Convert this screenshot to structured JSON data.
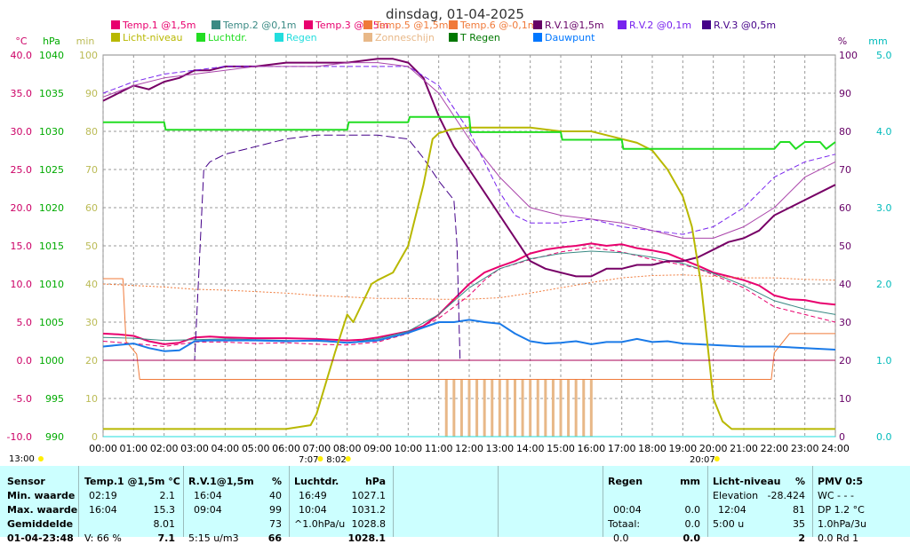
{
  "chart_data": {
    "type": "line",
    "title": "dinsdag, 01-04-2025",
    "x_ticks": [
      "00:00",
      "01:00",
      "02:00",
      "03:00",
      "04:00",
      "05:00",
      "06:00",
      "07:00",
      "08:00",
      "09:00",
      "10:00",
      "11:00",
      "12:00",
      "13:00",
      "14:00",
      "15:00",
      "16:00",
      "17:00",
      "18:00",
      "19:00",
      "20:00",
      "21:00",
      "22:00",
      "23:00",
      "24:00"
    ],
    "xlim": [
      0,
      24
    ],
    "axes": {
      "temp": {
        "label": "°C",
        "range": [
          -10,
          40
        ],
        "ticks": [
          "40.0",
          "35.0",
          "30.0",
          "25.0",
          "20.0",
          "15.0",
          "10.0",
          "5.0",
          "0.0",
          "-5.0",
          "-10.0"
        ],
        "color": "#cc0066"
      },
      "pressure": {
        "label": "hPa",
        "range": [
          990,
          1040
        ],
        "ticks": [
          "1040",
          "1035",
          "1030",
          "1025",
          "1020",
          "1015",
          "1010",
          "1005",
          "1000",
          "995",
          "990"
        ],
        "color": "#00aa00"
      },
      "minutes": {
        "label": "min",
        "range": [
          0,
          100
        ],
        "ticks": [
          "100",
          "90",
          "80",
          "70",
          "60",
          "50",
          "40",
          "30",
          "20",
          "10",
          "0"
        ],
        "color": "#bbbb55"
      },
      "humidity": {
        "label": "%",
        "range": [
          0,
          100
        ],
        "ticks": [
          "100",
          "90",
          "80",
          "70",
          "60",
          "50",
          "40",
          "30",
          "20",
          "10",
          "0"
        ],
        "color": "#660066"
      },
      "rain": {
        "label": "mm",
        "range": [
          0,
          5
        ],
        "ticks": [
          "5.0",
          "4.0",
          "3.0",
          "2.0",
          "1.0",
          "0.0"
        ],
        "color": "#00bbbb"
      }
    },
    "legend": [
      {
        "name": "Temp.1 @1,5m",
        "color": "#e8006e"
      },
      {
        "name": "Temp.2 @0,1m",
        "color": "#3a8a84"
      },
      {
        "name": "Temp.3 @0,5m",
        "color": "#e8006e"
      },
      {
        "name": "Temp.5 @1,5m",
        "color": "#f07a3a"
      },
      {
        "name": "Temp.6 @-0,1m",
        "color": "#f07a3a"
      },
      {
        "name": "R.V.1@1,5m",
        "color": "#660066"
      },
      {
        "name": "R.V.2 @0,1m",
        "color": "#7722ee"
      },
      {
        "name": "R.V.3 @0,5m",
        "color": "#440088"
      },
      {
        "name": "Licht-niveau",
        "color": "#b8b800"
      },
      {
        "name": "Luchtdr.",
        "color": "#22dd22"
      },
      {
        "name": "Regen",
        "color": "#22dddd"
      },
      {
        "name": "Zonneschijn",
        "color": "#e8b888"
      },
      {
        "name": "T Regen",
        "color": "#007700"
      },
      {
        "name": "Dauwpunt",
        "color": "#0077ff"
      }
    ],
    "legend_placement": "top",
    "grid": true,
    "series": [
      {
        "name": "Temp.1 @1,5m",
        "axis": "temp",
        "color": "#e8006e",
        "width": 2,
        "dash": "",
        "x": [
          0,
          0.5,
          1,
          1.5,
          2,
          2.5,
          3,
          3.5,
          4,
          5,
          6,
          7,
          8,
          8.5,
          9,
          10,
          10.5,
          11,
          11.5,
          12,
          12.5,
          13,
          13.5,
          14,
          14.5,
          15,
          15.5,
          16,
          16.5,
          17,
          17.5,
          18,
          18.5,
          19,
          19.5,
          20,
          20.5,
          21,
          21.5,
          22,
          22.5,
          23,
          23.5,
          24
        ],
        "y": [
          3.5,
          3.4,
          3.2,
          2.5,
          2.1,
          2.3,
          3.0,
          3.1,
          3.0,
          2.9,
          2.9,
          2.8,
          2.6,
          2.7,
          3.0,
          3.8,
          4.5,
          6.0,
          8.0,
          10.0,
          11.5,
          12.3,
          13.0,
          14.0,
          14.5,
          14.8,
          15.0,
          15.3,
          15.0,
          15.2,
          14.7,
          14.4,
          14.0,
          13.2,
          12.4,
          11.5,
          11.0,
          10.5,
          9.8,
          8.5,
          8.0,
          7.9,
          7.5,
          7.3
        ]
      },
      {
        "name": "Temp.3 @0,5m",
        "axis": "temp",
        "color": "#e8006e",
        "width": 1,
        "dash": "5,3",
        "x": [
          0,
          1,
          2,
          3,
          4,
          5,
          6,
          7,
          8,
          9,
          10,
          11,
          12,
          12.5,
          13,
          14,
          15,
          16,
          17,
          18,
          19,
          19.5,
          20,
          21,
          22,
          23,
          24
        ],
        "y": [
          2.5,
          2.2,
          1.8,
          2.4,
          2.4,
          2.2,
          2.3,
          2.1,
          2.0,
          2.4,
          3.5,
          5.5,
          8.5,
          10.5,
          12.0,
          13.2,
          14.2,
          14.8,
          14.2,
          13.2,
          12.5,
          12.0,
          11.2,
          9.5,
          7.0,
          6.0,
          5.0
        ]
      },
      {
        "name": "Temp.2 @0,1m",
        "axis": "temp",
        "color": "#3a8a84",
        "width": 1,
        "dash": "",
        "x": [
          0,
          1,
          2,
          3,
          4,
          5,
          6,
          7,
          8,
          9,
          10,
          11,
          12,
          13,
          14,
          15,
          16,
          17,
          18,
          19,
          20,
          21,
          22,
          23,
          24
        ],
        "y": [
          3.0,
          2.9,
          2.6,
          2.7,
          2.8,
          2.7,
          2.6,
          2.5,
          2.3,
          2.8,
          3.8,
          6.0,
          9.5,
          12.0,
          13.3,
          14.0,
          14.3,
          14.1,
          13.5,
          12.7,
          11.4,
          9.8,
          7.8,
          6.7,
          6.0
        ]
      },
      {
        "name": "Temp.6 @-0,1m",
        "axis": "temp",
        "color": "#f07a3a",
        "width": 1,
        "dash": "",
        "x": [
          0,
          0.65,
          0.75,
          1.1,
          1.2,
          4,
          8,
          12,
          16,
          19,
          21.9,
          22,
          22.5,
          24
        ],
        "y": [
          10.7,
          10.7,
          2.5,
          0.8,
          -2.5,
          -2.5,
          -2.5,
          -2.5,
          -2.5,
          -2.5,
          -2.5,
          1.0,
          3.5,
          3.5
        ]
      },
      {
        "name": "Temp.5 @1,5m",
        "axis": "temp",
        "color": "#f07a3a",
        "width": 1,
        "dash": "2,2",
        "x": [
          0,
          1,
          2,
          3,
          4,
          5,
          6,
          7,
          8,
          9,
          10,
          11,
          12,
          13,
          14,
          15,
          16,
          17,
          18,
          19,
          20,
          21,
          22,
          23,
          24
        ],
        "y": [
          10.0,
          9.8,
          9.6,
          9.3,
          9.2,
          9.0,
          8.8,
          8.5,
          8.3,
          8.1,
          8.1,
          8.0,
          8.0,
          8.2,
          8.8,
          9.5,
          10.2,
          10.8,
          11.1,
          11.2,
          11.0,
          10.8,
          10.8,
          10.6,
          10.5
        ]
      },
      {
        "name": "Dauwpunt",
        "axis": "temp",
        "color": "#1a7ae8",
        "width": 2,
        "dash": "",
        "x": [
          0,
          0.5,
          1,
          1.5,
          2,
          2.5,
          3,
          3.5,
          4,
          5,
          6,
          7,
          8,
          9,
          10,
          11,
          11.5,
          12,
          12.5,
          13,
          13.5,
          14,
          14.5,
          15,
          15.5,
          16,
          16.5,
          17,
          17.5,
          18,
          18.5,
          19,
          19.5,
          20,
          21,
          22,
          23,
          24
        ],
        "y": [
          1.8,
          2.0,
          2.2,
          1.6,
          1.2,
          1.3,
          2.5,
          2.6,
          2.6,
          2.6,
          2.5,
          2.6,
          2.3,
          2.6,
          3.6,
          5.0,
          5.0,
          5.3,
          5.0,
          4.8,
          3.5,
          2.5,
          2.2,
          2.3,
          2.5,
          2.1,
          2.4,
          2.4,
          2.8,
          2.4,
          2.5,
          2.2,
          2.1,
          2.0,
          1.8,
          1.8,
          1.6,
          1.4
        ]
      },
      {
        "name": "R.V.1@1,5m",
        "axis": "humidity",
        "color": "#770066",
        "width": 2,
        "dash": "",
        "x": [
          0,
          0.5,
          1,
          1.5,
          2,
          2.5,
          3,
          3.5,
          4,
          5,
          6,
          7,
          8,
          9,
          9.5,
          10,
          10.5,
          11,
          11.5,
          12,
          12.5,
          13,
          13.5,
          14,
          14.5,
          15,
          15.5,
          16,
          16.5,
          17,
          17.5,
          18,
          18.5,
          19,
          19.5,
          20,
          20.5,
          21,
          21.5,
          22,
          22.5,
          23,
          23.5,
          24
        ],
        "y": [
          88,
          90,
          92,
          91,
          93,
          94,
          96,
          96,
          97,
          97,
          98,
          98,
          98,
          99,
          99,
          98,
          94,
          84,
          76,
          70,
          64,
          58,
          52,
          46,
          44,
          43,
          42,
          42,
          44,
          44,
          45,
          45,
          46,
          46,
          47,
          49,
          51,
          52,
          54,
          58,
          60,
          62,
          64,
          66
        ]
      },
      {
        "name": "R.V.2 @0,1m",
        "axis": "humidity",
        "color": "#7722ee",
        "width": 1,
        "dash": "6,3",
        "x": [
          0,
          1,
          2,
          3,
          4,
          5,
          6,
          7,
          8,
          9,
          10,
          11,
          12,
          12.5,
          13,
          13.5,
          14,
          15,
          16,
          17,
          18,
          19,
          20,
          21,
          22,
          23,
          24
        ],
        "y": [
          90,
          93,
          95,
          96,
          97,
          97,
          97,
          97,
          97,
          97,
          97,
          92,
          80,
          72,
          64,
          58,
          56,
          56,
          57,
          55,
          54,
          53,
          55,
          60,
          68,
          72,
          74
        ]
      },
      {
        "name": "R.V.3 @0,5m",
        "axis": "humidity",
        "color": "#440088",
        "width": 1,
        "dash": "10,4",
        "x": [
          0,
          2.95,
          3.0,
          3.15,
          3.3,
          3.5,
          4,
          5,
          6,
          7,
          8,
          9,
          10,
          10.5,
          11,
          11.5,
          11.6,
          11.7,
          12,
          15,
          18,
          20,
          24
        ],
        "y": [
          20,
          20,
          20,
          45,
          70,
          72,
          74,
          76,
          78,
          79,
          79,
          79,
          78,
          73,
          67,
          62,
          50,
          20,
          20,
          20,
          20,
          20,
          20
        ]
      },
      {
        "name": "R.V. thin",
        "axis": "humidity",
        "color": "#aa44aa",
        "width": 1,
        "dash": "",
        "x": [
          0,
          1,
          2,
          3,
          4,
          5,
          6,
          7,
          8,
          9,
          10,
          11,
          12,
          13,
          14,
          15,
          16,
          17,
          18,
          19,
          20,
          21,
          22,
          23,
          24
        ],
        "y": [
          89,
          92,
          94,
          95,
          96,
          97,
          97,
          97,
          98,
          98,
          97,
          90,
          78,
          68,
          60,
          58,
          57,
          56,
          54,
          52,
          52,
          55,
          60,
          68,
          72
        ]
      },
      {
        "name": "Licht-niveau",
        "axis": "minutes",
        "color": "#b8b800",
        "width": 2,
        "dash": "",
        "x": [
          0,
          1,
          2,
          3,
          4,
          5,
          6,
          6.8,
          7,
          7.3,
          7.6,
          8,
          8.2,
          8.5,
          8.8,
          9.0,
          9.5,
          10,
          10.5,
          10.8,
          11,
          11.2,
          11.4,
          12,
          13,
          14,
          15,
          16,
          16.5,
          17,
          17.5,
          18,
          18.5,
          19,
          19.3,
          19.6,
          19.8,
          20,
          20.3,
          20.6,
          21,
          22,
          23,
          24
        ],
        "y": [
          2,
          2,
          2,
          2,
          2,
          2,
          2,
          3,
          6,
          14,
          22,
          32,
          30,
          35,
          40,
          41,
          43,
          50,
          66,
          78,
          79.5,
          80,
          80.5,
          81,
          81,
          81,
          80,
          80,
          79,
          78,
          77,
          75,
          70,
          63,
          55,
          40,
          25,
          10,
          4,
          2,
          2,
          2,
          2,
          2
        ]
      },
      {
        "name": "Luchtdr.",
        "axis": "pressure",
        "color": "#22dd22",
        "width": 2,
        "dash": "",
        "x": [
          0,
          2,
          2.05,
          3,
          8,
          8.05,
          10,
          10.05,
          12,
          12.05,
          13,
          14,
          15,
          15.05,
          16,
          16.5,
          17,
          17.05,
          18,
          19,
          19.5,
          20,
          20.5,
          21,
          22,
          22.2,
          22.5,
          22.7,
          23,
          23.5,
          23.7,
          24
        ],
        "y": [
          1031.2,
          1031.2,
          1030.2,
          1030.2,
          1030.2,
          1031.2,
          1031.2,
          1031.9,
          1031.9,
          1029.9,
          1029.9,
          1029.9,
          1029.9,
          1028.9,
          1028.9,
          1028.9,
          1028.9,
          1027.7,
          1027.7,
          1027.7,
          1027.7,
          1027.7,
          1027.7,
          1027.7,
          1027.7,
          1028.6,
          1028.6,
          1027.7,
          1028.6,
          1028.6,
          1027.7,
          1028.6
        ]
      },
      {
        "name": "Regen",
        "axis": "rain",
        "color": "#22dddd",
        "width": 1,
        "dash": "",
        "x": [
          0,
          24
        ],
        "y": [
          0.0,
          0.0
        ]
      },
      {
        "name": "Dewpoint zero line",
        "axis": "temp",
        "color": "#aa0055",
        "width": 1,
        "dash": "",
        "x": [
          0,
          24
        ],
        "y": [
          0,
          0
        ]
      }
    ],
    "sunshine_bars": {
      "axis": "minutes",
      "color": "#e8b888",
      "x": [
        11.25,
        11.5,
        11.75,
        12.0,
        12.25,
        12.5,
        12.75,
        13.0,
        13.25,
        13.5,
        13.75,
        14.0,
        14.25,
        14.5,
        14.75,
        15.0,
        15.25,
        15.5,
        15.75,
        16.0
      ],
      "y": [
        15,
        15,
        15,
        15,
        15,
        15,
        15,
        15,
        15,
        15,
        15,
        15,
        15,
        15,
        15,
        15,
        15,
        15,
        15,
        15
      ]
    },
    "sun_markers": [
      {
        "label": "13:00",
        "time": -0.2
      },
      {
        "label": "7:07",
        "time": 7.12
      },
      {
        "label": "8:02",
        "time": 8.03
      },
      {
        "label": "20:07",
        "time": 20.12
      }
    ]
  },
  "table": {
    "color": "#ccffff",
    "sensor": {
      "header": "Sensor",
      "rows": [
        "Min. waarde",
        "Max. waarde",
        "Gemiddelde",
        "01-04-23:48"
      ]
    },
    "temp1": {
      "header": "Temp.1 @1,5m  °C",
      "min_time": "02:19",
      "min_val": "2.1",
      "max_time": "16:04",
      "max_val": "15.3",
      "avg": "8.01",
      "last_label": "V: 66 %",
      "last_val": "7.1"
    },
    "rv1": {
      "header": "R.V.1@1,5m",
      "unit": "%",
      "min_time": "16:04",
      "min_val": "40",
      "max_time": "09:04",
      "max_val": "99",
      "avg": "73",
      "last_label": "5:15 u/m3",
      "last_val": "66"
    },
    "pressure": {
      "header": "Luchtdr.",
      "unit": "hPa",
      "min_time": "16:49",
      "min_val": "1027.1",
      "max_time": "10:04",
      "max_val": "1031.2",
      "trend_label": "^1.0hPa/u",
      "trend_val": "1028.8",
      "last_val": "1028.1"
    },
    "rain": {
      "header": "Regen",
      "unit": "mm",
      "row1_time": "00:04",
      "row1_val": "0.0",
      "row2_label": "Totaal:",
      "row2_val": "0.0",
      "row3_label": "0.0",
      "row3_val": "0.0"
    },
    "light": {
      "header": "Licht-niveau",
      "unit": "%",
      "elev_label": "Elevation",
      "elev_val": "-28.424",
      "max_time": "12:04",
      "max_val": "81",
      "sun_label": "5:00 u",
      "sun_val": "35",
      "last_val": "2"
    },
    "pmv": {
      "header": "PMV 0:5",
      "wc": "WC - - -",
      "dp": "DP 1.2 °C",
      "rate": "1.0hPa/3u",
      "rain_last": "0.0 Rd 1"
    }
  }
}
